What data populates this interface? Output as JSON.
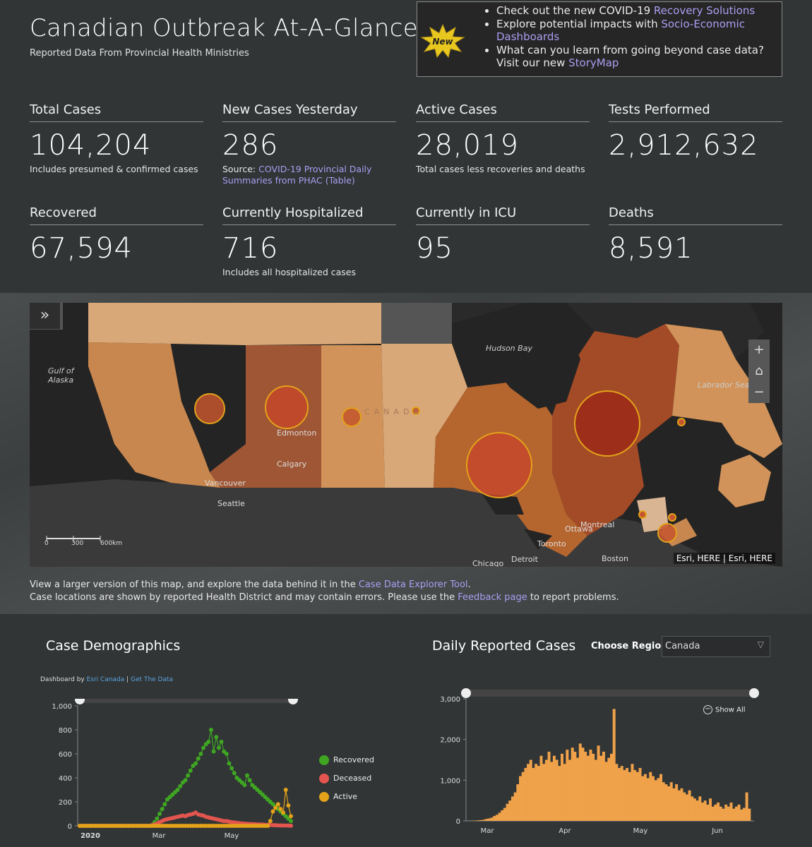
{
  "header": {
    "title": "Canadian Outbreak At-A-Glance",
    "subtitle": "Reported Data From Provincial Health Ministries",
    "news_badge": "New",
    "news": [
      {
        "prefix": "Check out the new COVID-19 ",
        "link": "Recovery Solutions",
        "suffix": ""
      },
      {
        "prefix": "Explore potential impacts with ",
        "link": "Socio-Economic Dashboards",
        "suffix": ""
      },
      {
        "prefix": "What can you learn from going beyond case data? Visit our new ",
        "link": "StoryMap",
        "suffix": ""
      }
    ]
  },
  "stats": {
    "total_cases": {
      "label": "Total Cases",
      "value": "104,204",
      "note": "Includes presumed & confirmed cases"
    },
    "new_cases": {
      "label": "New Cases Yesterday",
      "value": "286",
      "note_prefix": "Source: ",
      "note_link": "COVID-19 Provincial Daily Summaries from PHAC (Table)"
    },
    "active_cases": {
      "label": "Active Cases",
      "value": "28,019",
      "note": "Total cases less recoveries and deaths"
    },
    "tests": {
      "label": "Tests Performed",
      "value": "2,912,632"
    },
    "recovered": {
      "label": "Recovered",
      "value": "67,594"
    },
    "hospitalized": {
      "label": "Currently Hospitalized",
      "value": "716",
      "note": "Includes all hospitalized cases"
    },
    "icu": {
      "label": "Currently in ICU",
      "value": "95"
    },
    "deaths": {
      "label": "Deaths",
      "value": "8,591"
    }
  },
  "map": {
    "labels": {
      "gulf": "Gulf of Alaska",
      "hudson": "Hudson Bay",
      "labrador": "Labrador Sea",
      "canada": "CANADA",
      "edmonton": "Edmonton",
      "calgary": "Calgary",
      "vancouver": "Vancouver",
      "seattle": "Seattle",
      "ottawa": "Ottawa",
      "montreal": "Montreal",
      "toronto": "Toronto",
      "detroit": "Detroit",
      "chicago": "Chicago",
      "boston": "Boston"
    },
    "scale": {
      "s0": "0",
      "s1": "300",
      "s2": "600km"
    },
    "attribution": "Esri, HERE | Esri, HERE",
    "zoom_in": "+",
    "home": "⌂",
    "zoom_out": "−",
    "expand": "»",
    "note_line1_prefix": "View a larger version of this map, and explore the data behind it in the ",
    "note_line1_link": "Case Data Explorer Tool",
    "note_line1_suffix": ".",
    "note_line2_prefix": "Case locations are shown by reported Health District and may contain errors. Please use the ",
    "note_line2_link": "Feedback page",
    "note_line2_suffix": " to report problems."
  },
  "demographics": {
    "title": "Case Demographics",
    "credit_prefix": "Dashboard by ",
    "credit_link1": "Esri Canada",
    "credit_sep": " | ",
    "credit_link2": "Get The Data",
    "legend": [
      {
        "name": "Recovered",
        "color": "#3fa622"
      },
      {
        "name": "Deceased",
        "color": "#e4554f"
      },
      {
        "name": "Active",
        "color": "#e3a21a"
      }
    ]
  },
  "daily": {
    "title": "Daily Reported Cases",
    "region_label": "Choose Region:",
    "region_value": "Canada",
    "show_all": "Show All"
  },
  "chart_data": [
    {
      "type": "scatter",
      "title": "Case Demographics",
      "x_ticks": [
        "2020",
        "Mar",
        "May"
      ],
      "y_ticks": [
        "0",
        "200",
        "400",
        "600",
        "800",
        "1,000"
      ],
      "ylim": [
        0,
        1000
      ],
      "series": [
        {
          "name": "Recovered",
          "color": "#3fa622",
          "values": [
            0,
            0,
            0,
            0,
            0,
            0,
            0,
            0,
            0,
            0,
            0,
            0,
            0,
            0,
            0,
            0,
            0,
            0,
            0,
            0,
            0,
            0,
            0,
            0,
            0,
            0,
            0,
            0,
            5,
            30,
            60,
            100,
            140,
            180,
            220,
            240,
            260,
            280,
            300,
            330,
            360,
            380,
            420,
            460,
            500,
            520,
            560,
            600,
            650,
            680,
            700,
            800,
            620,
            740,
            650,
            700,
            620,
            600,
            520,
            480,
            440,
            400,
            380,
            360,
            340,
            420,
            380,
            340,
            320,
            300,
            280,
            260,
            240,
            220,
            200,
            180,
            160,
            140,
            120,
            100,
            80,
            60,
            40
          ]
        },
        {
          "name": "Deceased",
          "color": "#e4554f",
          "values": [
            0,
            0,
            0,
            0,
            0,
            0,
            0,
            0,
            0,
            0,
            0,
            0,
            0,
            0,
            0,
            0,
            0,
            0,
            0,
            0,
            0,
            0,
            0,
            0,
            0,
            0,
            0,
            0,
            5,
            10,
            20,
            30,
            40,
            50,
            55,
            60,
            65,
            70,
            75,
            80,
            85,
            80,
            90,
            95,
            100,
            110,
            95,
            90,
            85,
            75,
            70,
            65,
            60,
            55,
            50,
            45,
            40,
            40,
            35,
            30,
            28,
            25,
            22,
            20,
            18,
            16,
            15,
            14,
            13,
            12,
            11,
            10,
            9,
            8,
            7,
            6,
            5,
            4,
            3,
            3,
            2,
            2,
            1
          ]
        },
        {
          "name": "Active",
          "color": "#e3a21a",
          "values": [
            0,
            0,
            0,
            0,
            0,
            0,
            0,
            0,
            0,
            0,
            0,
            0,
            0,
            0,
            0,
            0,
            0,
            0,
            0,
            0,
            0,
            0,
            0,
            0,
            0,
            0,
            0,
            0,
            0,
            0,
            0,
            0,
            0,
            0,
            0,
            0,
            0,
            0,
            0,
            0,
            0,
            0,
            0,
            0,
            0,
            0,
            0,
            0,
            0,
            0,
            0,
            0,
            0,
            0,
            0,
            0,
            0,
            0,
            0,
            0,
            0,
            0,
            0,
            0,
            0,
            0,
            0,
            0,
            0,
            0,
            0,
            0,
            0,
            0,
            40,
            120,
            150,
            180,
            140,
            110,
            300,
            170,
            80
          ]
        }
      ]
    },
    {
      "type": "bar",
      "title": "Daily Reported Cases",
      "x_ticks": [
        "Mar",
        "Apr",
        "May",
        "Jun"
      ],
      "y_ticks": [
        "0",
        "1,000",
        "2,000",
        "3,000"
      ],
      "ylim": [
        0,
        3000
      ],
      "values": [
        5,
        5,
        10,
        15,
        20,
        30,
        50,
        60,
        80,
        120,
        150,
        200,
        260,
        320,
        420,
        500,
        600,
        700,
        900,
        1100,
        1200,
        1300,
        1400,
        1500,
        1300,
        1400,
        1350,
        1600,
        1400,
        1500,
        1700,
        1450,
        1600,
        1500,
        1350,
        1650,
        1400,
        1750,
        1500,
        1800,
        1700,
        1550,
        1900,
        1800,
        1700,
        1600,
        1750,
        1650,
        1500,
        1850,
        1600,
        1700,
        1450,
        1550,
        1650,
        2750,
        1400,
        1300,
        1350,
        1250,
        1300,
        1200,
        1400,
        1250,
        1200,
        1300,
        1100,
        1150,
        1050,
        1200,
        1100,
        1000,
        1050,
        1150,
        950,
        900,
        850,
        950,
        800,
        900,
        750,
        800,
        700,
        650,
        750,
        600,
        550,
        500,
        600,
        450,
        500,
        400,
        550,
        350,
        400,
        450,
        350,
        300,
        400,
        350,
        450,
        300,
        350,
        400,
        280,
        320,
        700,
        300
      ]
    }
  ]
}
